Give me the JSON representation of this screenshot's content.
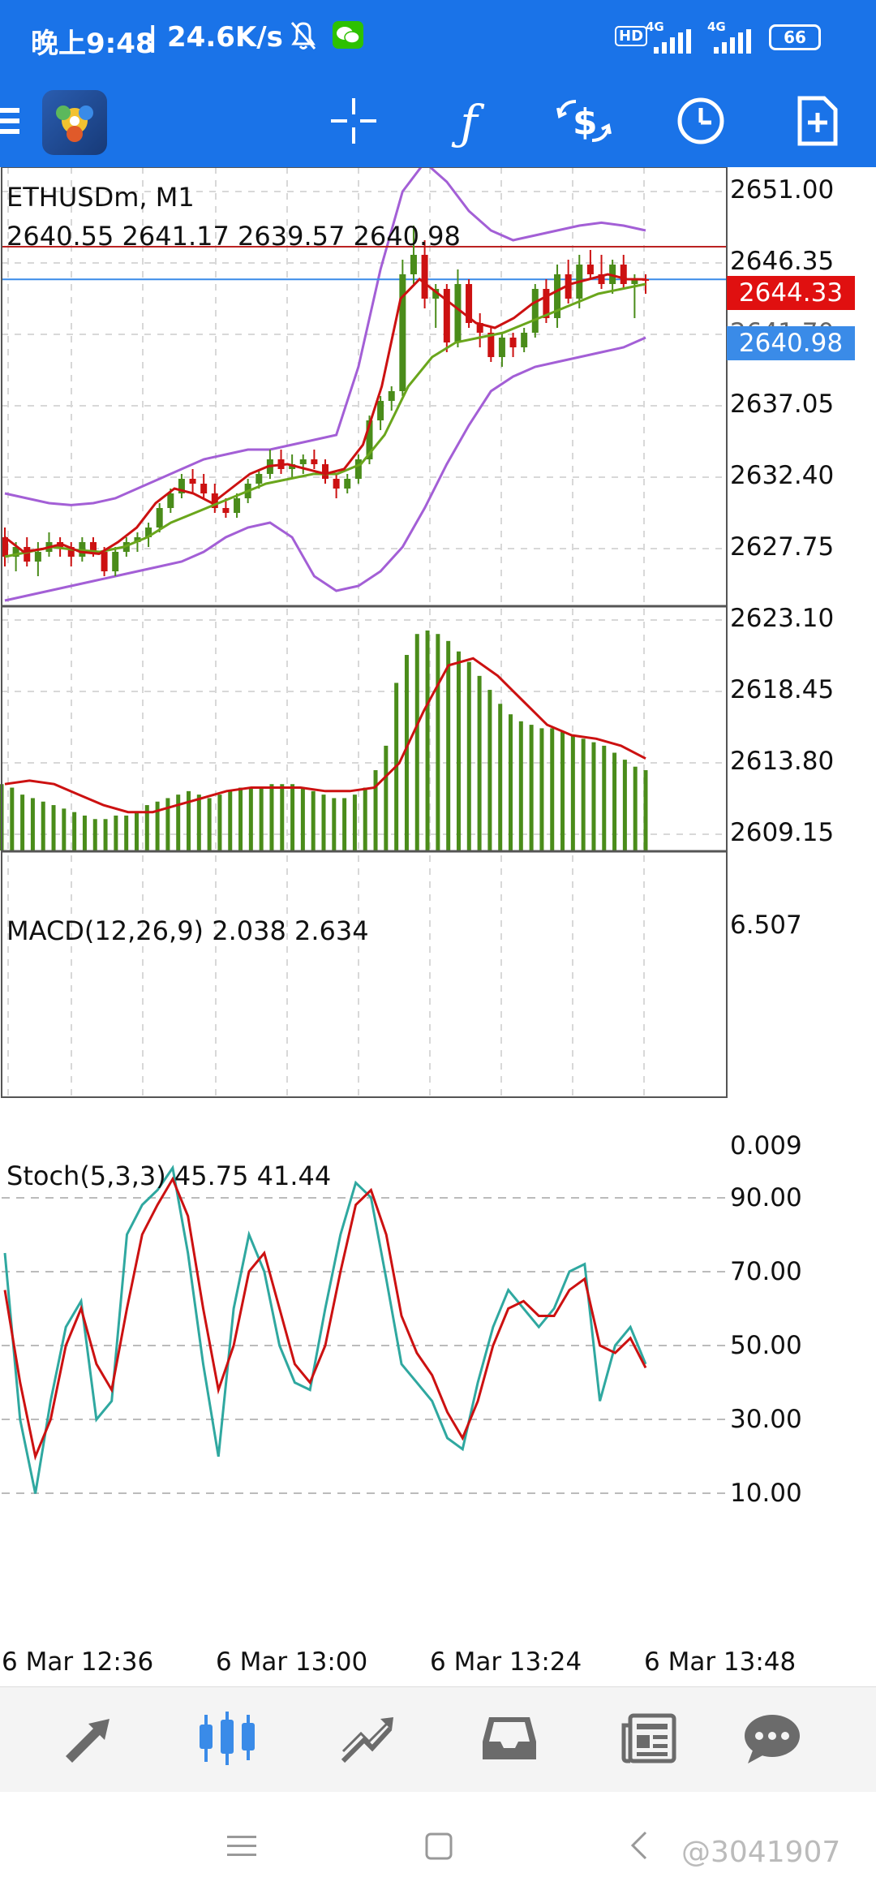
{
  "status": {
    "time": "晚上9:48",
    "speed": "24.6K/s",
    "battery": "66",
    "net1": "4G",
    "net2": "4G",
    "hd": "HD"
  },
  "toolbar": {
    "menu_icon": "hamburger-icon",
    "app_icon": "metatrader-icon",
    "crosshair_icon": "crosshair-icon",
    "indicator_icon": "function-icon",
    "symbol_icon": "dollar-exchange-icon",
    "timeframe_icon": "clock-icon",
    "new_order_icon": "add-document-icon"
  },
  "chart": {
    "symbol_title": "ETHUSDm, M1",
    "ohlc": "2640.55 2641.17 2639.57 2640.98",
    "price_ticks": [
      "2651.00",
      "2646.35",
      "2641.70",
      "2637.05",
      "2632.40",
      "2627.75",
      "2623.10",
      "2618.45",
      "2613.80",
      "2609.15"
    ],
    "tag_red": "2644.33",
    "tag_blue": "2640.98",
    "macd_title": "MACD(12,26,9) 2.038 2.634",
    "macd_max": "6.507",
    "macd_min": "0.009",
    "stoch_title": "Stoch(5,3,3) 45.75 41.44",
    "stoch_ticks": [
      "90.00",
      "70.00",
      "50.00",
      "30.00",
      "10.00"
    ],
    "time_labels": [
      "6 Mar 12:36",
      "6 Mar 13:00",
      "6 Mar 13:24",
      "6 Mar 13:48"
    ],
    "colors": {
      "bull": "#4a8c1a",
      "bear": "#cc1111",
      "bands": "#a35fd6",
      "ma_fast": "#cc1111",
      "ma_slow": "#6aa61c",
      "stoch_main": "#2fa8a0",
      "stoch_signal": "#cc1111",
      "tag_red": "#e01010",
      "tag_blue": "#3a8be8"
    }
  },
  "chart_data": {
    "type": "candlestick",
    "price_range": [
      2607.5,
      2652.5
    ],
    "candles": [
      {
        "o": 2614.5,
        "h": 2615.5,
        "l": 2611.5,
        "c": 2612.5
      },
      {
        "o": 2612.5,
        "h": 2614.0,
        "l": 2611.0,
        "c": 2613.5
      },
      {
        "o": 2613.5,
        "h": 2614.5,
        "l": 2611.5,
        "c": 2612.0
      },
      {
        "o": 2612.0,
        "h": 2614.0,
        "l": 2610.5,
        "c": 2613.0
      },
      {
        "o": 2613.0,
        "h": 2615.0,
        "l": 2612.5,
        "c": 2614.0
      },
      {
        "o": 2614.0,
        "h": 2614.5,
        "l": 2612.5,
        "c": 2613.5
      },
      {
        "o": 2613.5,
        "h": 2614.0,
        "l": 2611.5,
        "c": 2612.5
      },
      {
        "o": 2612.5,
        "h": 2614.5,
        "l": 2612.0,
        "c": 2614.0
      },
      {
        "o": 2614.0,
        "h": 2614.5,
        "l": 2612.5,
        "c": 2613.0
      },
      {
        "o": 2613.0,
        "h": 2613.5,
        "l": 2610.5,
        "c": 2611.0
      },
      {
        "o": 2611.0,
        "h": 2613.5,
        "l": 2610.5,
        "c": 2613.0
      },
      {
        "o": 2613.0,
        "h": 2614.5,
        "l": 2612.5,
        "c": 2614.0
      },
      {
        "o": 2614.0,
        "h": 2615.0,
        "l": 2613.0,
        "c": 2614.5
      },
      {
        "o": 2614.5,
        "h": 2616.0,
        "l": 2613.5,
        "c": 2615.5
      },
      {
        "o": 2615.5,
        "h": 2618.0,
        "l": 2615.0,
        "c": 2617.5
      },
      {
        "o": 2617.5,
        "h": 2619.5,
        "l": 2617.0,
        "c": 2619.0
      },
      {
        "o": 2619.0,
        "h": 2621.0,
        "l": 2618.5,
        "c": 2620.5
      },
      {
        "o": 2620.5,
        "h": 2621.5,
        "l": 2619.0,
        "c": 2620.0
      },
      {
        "o": 2620.0,
        "h": 2621.0,
        "l": 2618.5,
        "c": 2619.0
      },
      {
        "o": 2619.0,
        "h": 2620.0,
        "l": 2617.0,
        "c": 2617.5
      },
      {
        "o": 2617.5,
        "h": 2618.5,
        "l": 2616.5,
        "c": 2617.0
      },
      {
        "o": 2617.0,
        "h": 2619.0,
        "l": 2616.5,
        "c": 2618.5
      },
      {
        "o": 2618.5,
        "h": 2620.5,
        "l": 2618.0,
        "c": 2620.0
      },
      {
        "o": 2620.0,
        "h": 2621.5,
        "l": 2619.5,
        "c": 2621.0
      },
      {
        "o": 2621.0,
        "h": 2623.5,
        "l": 2620.5,
        "c": 2622.5
      },
      {
        "o": 2622.5,
        "h": 2623.5,
        "l": 2621.0,
        "c": 2621.5
      },
      {
        "o": 2621.5,
        "h": 2623.0,
        "l": 2620.5,
        "c": 2622.0
      },
      {
        "o": 2622.0,
        "h": 2623.0,
        "l": 2621.0,
        "c": 2622.5
      },
      {
        "o": 2622.5,
        "h": 2623.5,
        "l": 2621.5,
        "c": 2622.0
      },
      {
        "o": 2622.0,
        "h": 2622.5,
        "l": 2620.0,
        "c": 2620.5
      },
      {
        "o": 2620.5,
        "h": 2621.0,
        "l": 2618.5,
        "c": 2619.5
      },
      {
        "o": 2619.5,
        "h": 2621.0,
        "l": 2619.0,
        "c": 2620.5
      },
      {
        "o": 2620.5,
        "h": 2623.0,
        "l": 2620.0,
        "c": 2622.5
      },
      {
        "o": 2622.5,
        "h": 2627.0,
        "l": 2622.0,
        "c": 2626.5
      },
      {
        "o": 2626.5,
        "h": 2629.0,
        "l": 2625.5,
        "c": 2628.5
      },
      {
        "o": 2628.5,
        "h": 2630.0,
        "l": 2627.5,
        "c": 2629.5
      },
      {
        "o": 2629.5,
        "h": 2643.0,
        "l": 2629.0,
        "c": 2641.5
      },
      {
        "o": 2641.5,
        "h": 2646.5,
        "l": 2640.5,
        "c": 2643.5
      },
      {
        "o": 2643.5,
        "h": 2645.0,
        "l": 2638.0,
        "c": 2639.0
      },
      {
        "o": 2639.0,
        "h": 2640.5,
        "l": 2636.0,
        "c": 2640.0
      },
      {
        "o": 2640.0,
        "h": 2640.5,
        "l": 2633.5,
        "c": 2634.5
      },
      {
        "o": 2634.5,
        "h": 2642.0,
        "l": 2634.0,
        "c": 2640.5
      },
      {
        "o": 2640.5,
        "h": 2641.0,
        "l": 2636.0,
        "c": 2636.5
      },
      {
        "o": 2636.5,
        "h": 2637.5,
        "l": 2634.0,
        "c": 2635.5
      },
      {
        "o": 2635.5,
        "h": 2636.0,
        "l": 2632.5,
        "c": 2633.0
      },
      {
        "o": 2633.0,
        "h": 2635.5,
        "l": 2632.0,
        "c": 2635.0
      },
      {
        "o": 2635.0,
        "h": 2635.5,
        "l": 2633.0,
        "c": 2634.0
      },
      {
        "o": 2634.0,
        "h": 2636.0,
        "l": 2633.5,
        "c": 2635.5
      },
      {
        "o": 2635.5,
        "h": 2640.5,
        "l": 2635.0,
        "c": 2640.0
      },
      {
        "o": 2640.0,
        "h": 2641.0,
        "l": 2636.5,
        "c": 2637.0
      },
      {
        "o": 2637.0,
        "h": 2642.5,
        "l": 2636.0,
        "c": 2641.5
      },
      {
        "o": 2641.5,
        "h": 2643.0,
        "l": 2638.5,
        "c": 2639.0
      },
      {
        "o": 2639.0,
        "h": 2643.5,
        "l": 2638.0,
        "c": 2642.5
      },
      {
        "o": 2642.5,
        "h": 2644.0,
        "l": 2641.0,
        "c": 2641.5
      },
      {
        "o": 2641.5,
        "h": 2643.5,
        "l": 2640.0,
        "c": 2640.5
      },
      {
        "o": 2640.5,
        "h": 2643.0,
        "l": 2639.5,
        "c": 2642.5
      },
      {
        "o": 2642.5,
        "h": 2643.5,
        "l": 2640.0,
        "c": 2640.5
      },
      {
        "o": 2640.5,
        "h": 2641.5,
        "l": 2637.0,
        "c": 2641.0
      },
      {
        "o": 2641.0,
        "h": 2641.5,
        "l": 2639.5,
        "c": 2640.98
      }
    ],
    "bb_upper": [
      2619.0,
      2618.5,
      2618.0,
      2617.8,
      2618.0,
      2618.5,
      2619.5,
      2620.5,
      2621.5,
      2622.5,
      2623.0,
      2623.5,
      2623.5,
      2624.0,
      2624.5,
      2625.0,
      2632.0,
      2642.0,
      2650.0,
      2653.0,
      2651.0,
      2648.0,
      2646.0,
      2645.0,
      2645.5,
      2646.0,
      2646.5,
      2646.8,
      2646.5,
      2646.0
    ],
    "bb_lower": [
      2608.0,
      2608.5,
      2609.0,
      2609.5,
      2610.0,
      2610.5,
      2611.0,
      2611.5,
      2612.0,
      2613.0,
      2614.5,
      2615.5,
      2616.0,
      2614.5,
      2610.5,
      2609.0,
      2609.5,
      2611.0,
      2613.5,
      2617.5,
      2622.0,
      2626.0,
      2629.5,
      2631.0,
      2632.0,
      2632.5,
      2633.0,
      2633.5,
      2634.0,
      2635.0
    ],
    "ma_fast": [
      2614.5,
      2613.0,
      2613.3,
      2613.8,
      2613.0,
      2612.8,
      2614.0,
      2615.5,
      2618.0,
      2619.5,
      2619.0,
      2618.0,
      2619.5,
      2621.0,
      2621.8,
      2622.0,
      2621.5,
      2621.0,
      2621.5,
      2624.0,
      2630.0,
      2639.0,
      2641.0,
      2639.5,
      2638.0,
      2636.5,
      2636.0,
      2637.0,
      2638.5,
      2639.5,
      2640.5,
      2641.0,
      2641.5,
      2641.0,
      2640.98
    ],
    "ma_slow": [
      2612.5,
      2613.0,
      2613.5,
      2613.2,
      2613.0,
      2613.5,
      2614.5,
      2616.0,
      2617.0,
      2618.0,
      2619.0,
      2620.0,
      2620.5,
      2621.0,
      2621.0,
      2622.0,
      2625.0,
      2630.0,
      2633.0,
      2634.5,
      2635.0,
      2635.5,
      2636.5,
      2637.5,
      2638.5,
      2639.5,
      2640.0,
      2640.5
    ],
    "macd_range": [
      0,
      6.507
    ],
    "macd_hist": [
      1.9,
      1.8,
      1.6,
      1.5,
      1.4,
      1.3,
      1.2,
      1.1,
      1.0,
      0.9,
      0.9,
      1.0,
      1.0,
      1.1,
      1.3,
      1.4,
      1.5,
      1.6,
      1.7,
      1.6,
      1.5,
      1.6,
      1.7,
      1.8,
      1.8,
      1.8,
      1.9,
      1.9,
      1.9,
      1.8,
      1.7,
      1.6,
      1.5,
      1.5,
      1.6,
      1.8,
      2.3,
      3.0,
      4.8,
      5.6,
      6.2,
      6.3,
      6.2,
      6.0,
      5.7,
      5.4,
      5.0,
      4.6,
      4.2,
      3.9,
      3.7,
      3.6,
      3.5,
      3.5,
      3.4,
      3.3,
      3.2,
      3.1,
      3.0,
      2.8,
      2.6,
      2.4,
      2.3
    ],
    "macd_signal": [
      1.9,
      2.0,
      1.9,
      1.6,
      1.3,
      1.1,
      1.1,
      1.3,
      1.5,
      1.7,
      1.8,
      1.8,
      1.8,
      1.7,
      1.7,
      1.8,
      2.5,
      4.0,
      5.3,
      5.5,
      5.0,
      4.3,
      3.6,
      3.3,
      3.2,
      3.0,
      2.634
    ],
    "stoch_range": [
      0,
      100
    ],
    "stoch_main": [
      75,
      30,
      10,
      35,
      55,
      62,
      30,
      35,
      80,
      88,
      92,
      98,
      75,
      45,
      20,
      60,
      80,
      70,
      50,
      40,
      38,
      60,
      80,
      94,
      90,
      68,
      45,
      40,
      35,
      25,
      22,
      40,
      55,
      65,
      60,
      55,
      60,
      70,
      72,
      35,
      50,
      55,
      45
    ],
    "stoch_signal": [
      65,
      40,
      20,
      30,
      50,
      60,
      45,
      38,
      60,
      80,
      88,
      95,
      85,
      60,
      38,
      50,
      70,
      75,
      60,
      45,
      40,
      50,
      70,
      88,
      92,
      80,
      58,
      48,
      42,
      32,
      25,
      35,
      50,
      60,
      62,
      58,
      58,
      65,
      68,
      50,
      48,
      52,
      44
    ]
  },
  "nav": {
    "trade_icon": "trade-arrows-icon",
    "chart_icon": "candlestick-chart-icon",
    "history_icon": "trend-history-icon",
    "messages_icon": "inbox-icon",
    "news_icon": "news-icon",
    "chat_icon": "chat-bubble-icon"
  },
  "watermark": "@3041907"
}
